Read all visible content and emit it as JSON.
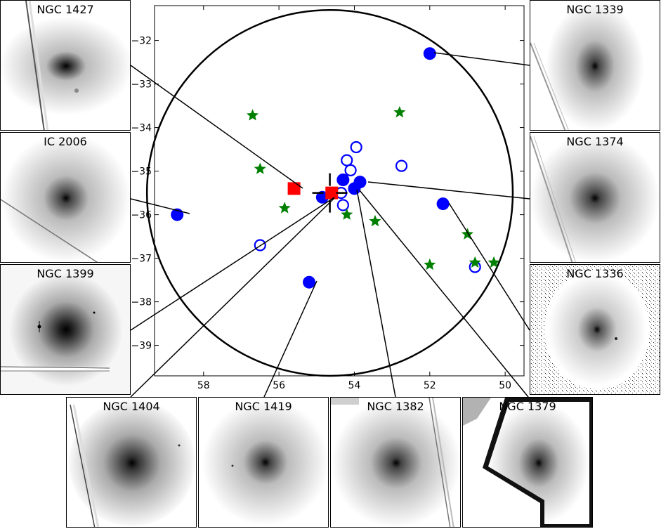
{
  "panels": {
    "ngc1427": "NGC 1427",
    "ic2006": "IC 2006",
    "ngc1399": "NGC 1399",
    "ngc1339": "NGC 1339",
    "ngc1374": "NGC 1374",
    "ngc1336": "NGC 1336",
    "ngc1404": "NGC 1404",
    "ngc1419": "NGC 1419",
    "ngc1382": "NGC 1382",
    "ngc1379": "NGC 1379"
  },
  "chart_data": {
    "type": "scatter",
    "xlim": [
      59.3,
      49.5
    ],
    "ylim": [
      -39.7,
      -31.2
    ],
    "x_ticks": [
      58,
      56,
      54,
      52,
      50
    ],
    "y_ticks": [
      -32,
      -33,
      -34,
      -35,
      -36,
      -37,
      -38,
      -39
    ],
    "circle": {
      "center": [
        54.65,
        -35.5
      ],
      "radius_deg": 4.2
    },
    "cross": {
      "x": 54.65,
      "y": -35.5
    },
    "series": [
      {
        "marker": "filled-circle",
        "color": "#0000ff",
        "points": [
          {
            "x": 52.0,
            "y": -32.3
          },
          {
            "x": 58.7,
            "y": -36.0
          },
          {
            "x": 54.85,
            "y": -35.6
          },
          {
            "x": 54.3,
            "y": -35.2
          },
          {
            "x": 53.85,
            "y": -35.25
          },
          {
            "x": 54.0,
            "y": -35.4
          },
          {
            "x": 51.65,
            "y": -35.75
          },
          {
            "x": 55.2,
            "y": -37.55
          }
        ]
      },
      {
        "marker": "open-circle",
        "color": "#0000ff",
        "points": [
          {
            "x": 53.95,
            "y": -34.45
          },
          {
            "x": 54.2,
            "y": -34.75
          },
          {
            "x": 54.1,
            "y": -34.98
          },
          {
            "x": 52.75,
            "y": -34.88
          },
          {
            "x": 54.35,
            "y": -35.5
          },
          {
            "x": 54.3,
            "y": -35.78
          },
          {
            "x": 56.5,
            "y": -36.7
          },
          {
            "x": 50.8,
            "y": -37.2
          }
        ]
      },
      {
        "marker": "star",
        "color": "#008000",
        "points": [
          {
            "x": 56.7,
            "y": -33.72
          },
          {
            "x": 52.8,
            "y": -33.65
          },
          {
            "x": 56.5,
            "y": -34.95
          },
          {
            "x": 55.85,
            "y": -35.85
          },
          {
            "x": 54.2,
            "y": -36.0
          },
          {
            "x": 53.45,
            "y": -36.15
          },
          {
            "x": 51.0,
            "y": -36.45
          },
          {
            "x": 52.0,
            "y": -37.15
          },
          {
            "x": 50.8,
            "y": -37.1
          },
          {
            "x": 50.3,
            "y": -37.1
          }
        ]
      },
      {
        "marker": "square",
        "color": "#ff0000",
        "points": [
          {
            "x": 55.6,
            "y": -35.4
          },
          {
            "x": 54.6,
            "y": -35.5
          }
        ]
      }
    ]
  }
}
